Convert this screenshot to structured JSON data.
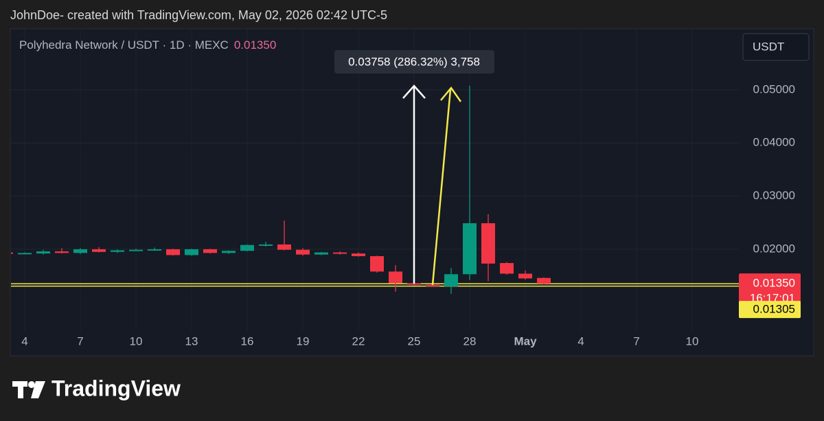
{
  "attribution": "JohnDoe- created with TradingView.com, May 02, 2026 02:42 UTC-5",
  "logo": "TradingView",
  "chart_data": {
    "type": "candlestick",
    "title": "Polyhedra Network / USDT · 1D · MEXC",
    "currency": "USDT",
    "measurement": "0.03758 (286.32%) 3,758",
    "categories": [
      null,
      "4",
      null,
      null,
      "7",
      null,
      null,
      "10",
      null,
      null,
      "13",
      null,
      null,
      "16",
      null,
      null,
      "19",
      null,
      null,
      "22",
      null,
      null,
      "25",
      null,
      null,
      "28",
      null,
      null,
      "May",
      null,
      null,
      "4",
      null,
      null,
      "7",
      null,
      null,
      "10",
      null,
      null
    ],
    "open": [
      0.0194,
      0.0192,
      0.0192,
      0.0196,
      0.0193,
      0.02,
      0.0195,
      0.0198,
      0.0199,
      0.02,
      0.0189,
      0.02,
      0.0193,
      0.0197,
      0.0207,
      0.0209,
      0.0199,
      0.019,
      0.0194,
      0.0192,
      0.0187,
      0.0158,
      0.0136,
      0.0133,
      0.013,
      0.0153,
      0.0249,
      0.0174,
      0.0154,
      0.0146,
      null,
      null,
      null,
      null,
      null,
      null,
      null,
      null,
      null,
      null
    ],
    "high": [
      0.0195,
      0.0194,
      0.0199,
      0.0202,
      0.0202,
      0.0204,
      0.02,
      0.0201,
      0.0203,
      0.0201,
      0.0201,
      0.0201,
      0.0198,
      0.0209,
      0.0214,
      0.0254,
      0.0202,
      0.0195,
      0.0196,
      0.0194,
      0.0188,
      0.017,
      0.0137,
      0.0135,
      0.0165,
      0.0508,
      0.0266,
      0.0176,
      0.016,
      0.0147,
      null,
      null,
      null,
      null,
      null,
      null,
      null,
      null,
      null,
      null
    ],
    "low": [
      0.0191,
      0.0191,
      0.019,
      0.0192,
      0.0191,
      0.0194,
      0.0193,
      0.0197,
      0.0197,
      0.0188,
      0.0188,
      0.0192,
      0.0191,
      0.0196,
      0.0205,
      0.0198,
      0.0188,
      0.0189,
      0.019,
      0.0186,
      0.0156,
      0.012,
      0.0132,
      0.0129,
      0.0116,
      0.0142,
      0.014,
      0.0152,
      0.0143,
      0.0134,
      null,
      null,
      null,
      null,
      null,
      null,
      null,
      null,
      null,
      null
    ],
    "close": [
      0.0193,
      0.0193,
      0.0196,
      0.0193,
      0.02,
      0.0195,
      0.0198,
      0.0199,
      0.02,
      0.0189,
      0.02,
      0.0193,
      0.0197,
      0.0208,
      0.0209,
      0.0199,
      0.019,
      0.0194,
      0.0192,
      0.0187,
      0.0158,
      0.0136,
      0.0133,
      0.013,
      0.0153,
      0.0249,
      0.0173,
      0.0154,
      0.0145,
      0.0135,
      null,
      null,
      null,
      null,
      null,
      null,
      null,
      null,
      null,
      null
    ],
    "up_color": "#089981",
    "down_color": "#f23645",
    "ylim": [
      0.0046,
      0.0615
    ],
    "yticks": [
      {
        "value": 0.02,
        "label": "0.02000"
      },
      {
        "value": 0.03,
        "label": "0.03000"
      },
      {
        "value": 0.04,
        "label": "0.04000"
      },
      {
        "value": 0.05,
        "label": "0.05000"
      }
    ],
    "grid": true,
    "last_price": {
      "value": 0.0135,
      "label": "0.01350",
      "countdown": "16:17:01",
      "color": "#f23645"
    },
    "alert_line": {
      "value": 0.01305,
      "label": "0.01305",
      "color": "#f5e94a"
    }
  }
}
